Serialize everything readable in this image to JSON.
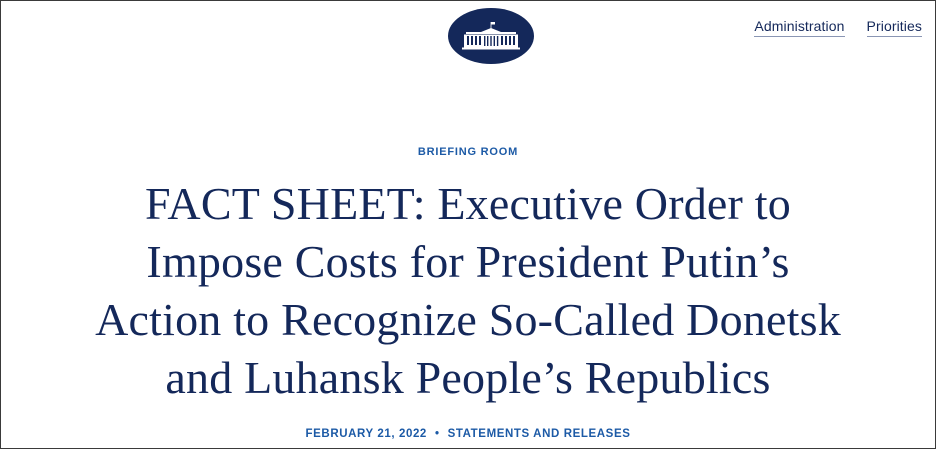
{
  "header": {
    "nav": [
      {
        "label": "Administration"
      },
      {
        "label": "Priorities"
      }
    ]
  },
  "article": {
    "kicker": "BRIEFING ROOM",
    "title_lines": [
      "FACT SHEET: Executive Order to",
      "Impose Costs for President Putin’s",
      "Action to Recognize So-Called Donetsk",
      "and Luhansk People’s Republics"
    ],
    "date": "FEBRUARY 21, 2022",
    "separator": "•",
    "category": "STATEMENTS AND RELEASES"
  },
  "icons": {
    "logo": "white-house-seal-icon"
  },
  "colors": {
    "navy": "#14285a",
    "accent_blue": "#1c5aa6"
  }
}
